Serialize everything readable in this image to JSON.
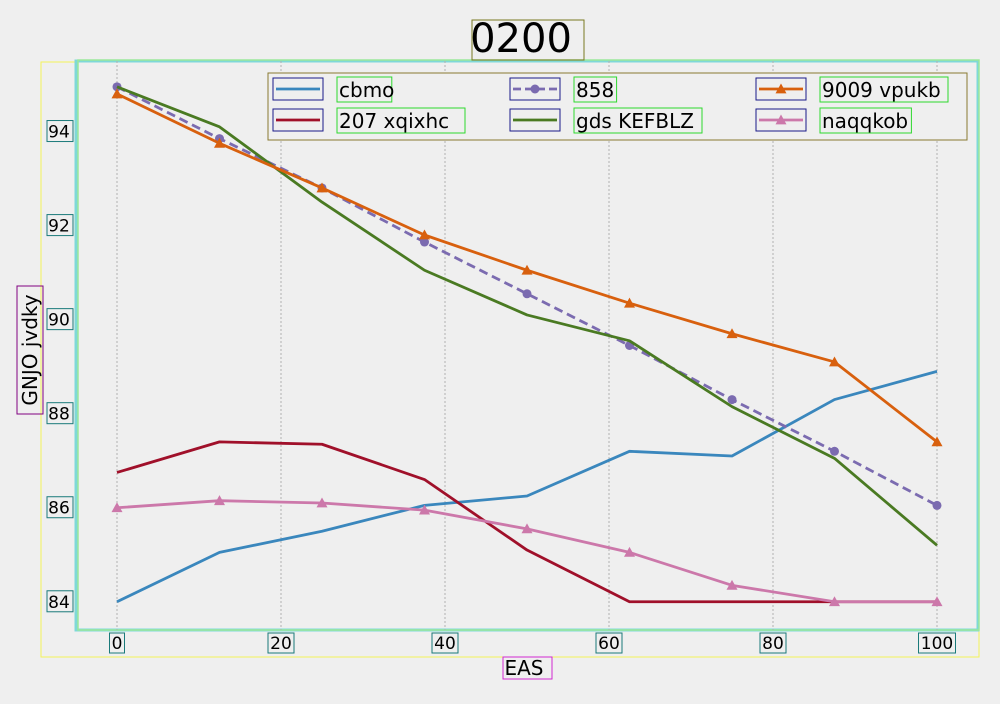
{
  "chart_data": {
    "type": "line",
    "title": "0200",
    "xlabel": "EAS",
    "ylabel": "GNJO jvdky",
    "xlim": [
      -5,
      105
    ],
    "ylim": [
      83.4,
      95.5
    ],
    "x_ticks": [
      0,
      20,
      40,
      60,
      80,
      100
    ],
    "x_tick_labels": [
      "0",
      "20",
      "40",
      "60",
      "80",
      "100"
    ],
    "y_ticks": [
      84,
      86,
      88,
      90,
      92,
      94
    ],
    "y_tick_labels": [
      "84",
      "86",
      "88",
      "90",
      "92",
      "94"
    ],
    "grid": "vertical dotted",
    "legend_position": "top",
    "x": [
      0,
      12.5,
      25,
      37.5,
      50,
      62.5,
      75,
      87.5,
      100
    ],
    "series": [
      {
        "name": "cbmo",
        "color": "#3a87bd",
        "style": "solid",
        "marker": "none",
        "values": [
          84.0,
          85.05,
          85.5,
          86.05,
          86.25,
          87.2,
          87.1,
          88.3,
          88.9
        ]
      },
      {
        "name": "207 xqixhc",
        "color": "#a0102a",
        "style": "solid",
        "marker": "none",
        "values": [
          86.75,
          87.4,
          87.35,
          86.6,
          85.1,
          84.0,
          84.0,
          84.0,
          84.0
        ]
      },
      {
        "name": "858",
        "color": "#7b6bb0",
        "style": "dashed",
        "marker": "circle",
        "values": [
          94.95,
          93.85,
          92.8,
          91.65,
          90.55,
          89.45,
          88.3,
          87.2,
          86.05
        ]
      },
      {
        "name": "gds KEFBLZ",
        "color": "#4a7a22",
        "style": "solid",
        "marker": "none",
        "values": [
          94.95,
          94.1,
          92.5,
          91.05,
          90.1,
          89.55,
          88.15,
          87.05,
          85.2
        ]
      },
      {
        "name": "9009 vpukb",
        "color": "#d8600e",
        "style": "solid",
        "marker": "triangle",
        "values": [
          94.8,
          93.75,
          92.8,
          91.8,
          91.05,
          90.35,
          89.7,
          89.1,
          87.4
        ]
      },
      {
        "name": "naqqkob",
        "color": "#cc78aa",
        "style": "solid",
        "marker": "triangle",
        "values": [
          86.0,
          86.15,
          86.1,
          85.95,
          85.55,
          85.05,
          84.35,
          84.0,
          84.0
        ]
      }
    ]
  }
}
